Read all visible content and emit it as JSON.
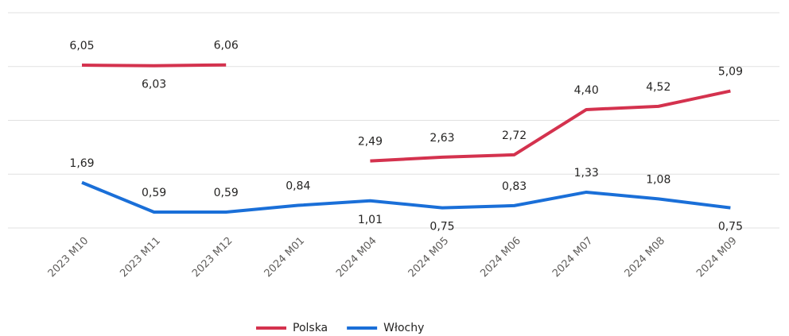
{
  "chart_data": {
    "type": "line",
    "categories": [
      "2023 M10",
      "2023 M11",
      "2023 M12",
      "2024 M01",
      "2024 M04",
      "2024 M05",
      "2024 M06",
      "2024 M07",
      "2024 M08",
      "2024 M09"
    ],
    "series": [
      {
        "name": "Polska",
        "color": "#d4324e",
        "values": [
          6.05,
          6.03,
          6.06,
          null,
          2.49,
          2.63,
          2.72,
          4.4,
          4.52,
          5.09
        ],
        "value_labels": [
          "6,05",
          "6,03",
          "6,06",
          null,
          "2,49",
          "2,63",
          "2,72",
          "4,40",
          "4,52",
          "5,09"
        ]
      },
      {
        "name": "Włochy",
        "color": "#1a6fd8",
        "values": [
          1.69,
          0.59,
          0.59,
          0.84,
          1.01,
          0.75,
          0.83,
          1.33,
          1.08,
          0.75
        ],
        "value_labels": [
          "1,69",
          "0,59",
          "0,59",
          "0,84",
          "1,01",
          "0,75",
          "0,83",
          "1,33",
          "1,08",
          "0,75"
        ]
      }
    ],
    "ylim": [
      0,
      8
    ],
    "yticks": [
      0,
      2,
      4,
      6,
      8
    ],
    "grid": true,
    "legend": "bottom"
  }
}
